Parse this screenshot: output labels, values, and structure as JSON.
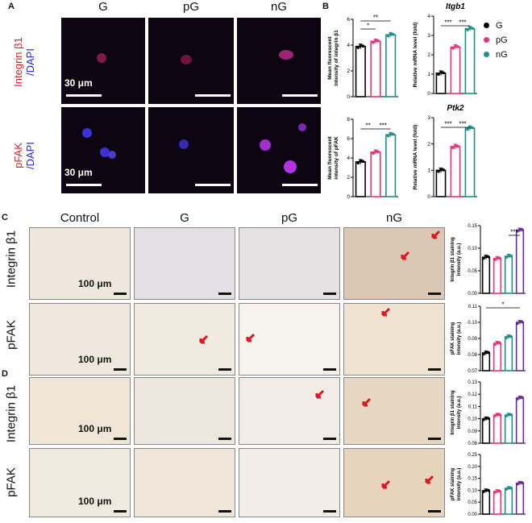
{
  "panels": {
    "a": "A",
    "b": "B",
    "c": "C",
    "d": "D"
  },
  "fluor": {
    "columns": [
      "G",
      "pG",
      "nG"
    ],
    "rows": [
      {
        "label_red": "Integrin β1",
        "label_blue": "/DAPI"
      },
      {
        "label_red": "pFAK",
        "label_blue": "/DAPI"
      }
    ],
    "scale": "30 μm"
  },
  "ihc": {
    "columns": [
      "Control",
      "G",
      "pG",
      "nG"
    ],
    "rows_c": [
      "Integrin β1",
      "pFAK"
    ],
    "rows_d": [
      "Integrin β1",
      "pFAK"
    ],
    "scale": "100 μm"
  },
  "legend": {
    "items": [
      {
        "name": "G",
        "color": "#000000"
      },
      {
        "name": "pG",
        "color": "#e8337a"
      },
      {
        "name": "nG",
        "color": "#1f8f8a"
      }
    ]
  },
  "colors": {
    "G": "#000000",
    "pG": "#e8337a",
    "nG": "#1f8f8a",
    "nG_purple": "#6a2c91"
  },
  "chart_data": [
    {
      "type": "bar",
      "id": "b_integrin",
      "categories": [
        "G",
        "pG",
        "nG"
      ],
      "values": [
        3.9,
        4.3,
        4.8
      ],
      "ylabel": "Mean fluorescent intensity of integrin β1",
      "ylim": [
        0,
        6
      ],
      "yticks": [
        0,
        2,
        4,
        6
      ],
      "sig": [
        {
          "from": 0,
          "to": 1,
          "label": "*"
        },
        {
          "from": 0,
          "to": 2,
          "label": "**"
        }
      ]
    },
    {
      "type": "bar",
      "id": "b_itgb1",
      "title": "Itgb1",
      "categories": [
        "G",
        "pG",
        "nG"
      ],
      "values": [
        1.05,
        2.4,
        3.35
      ],
      "ylabel": "Relative mRNA level (fold)",
      "ylim": [
        0,
        4
      ],
      "yticks": [
        0,
        1,
        2,
        3,
        4
      ],
      "sig": [
        {
          "from": 0,
          "to": 1,
          "label": "***"
        },
        {
          "from": 1,
          "to": 2,
          "label": "***"
        }
      ]
    },
    {
      "type": "bar",
      "id": "b_pfak",
      "categories": [
        "G",
        "pG",
        "nG"
      ],
      "values": [
        3.6,
        4.6,
        6.4
      ],
      "ylabel": "Mean fluorescent intensity of pFAK",
      "ylim": [
        0,
        8
      ],
      "yticks": [
        0,
        2,
        4,
        6,
        8
      ],
      "sig": [
        {
          "from": 0,
          "to": 1,
          "label": "**"
        },
        {
          "from": 1,
          "to": 2,
          "label": "***"
        }
      ]
    },
    {
      "type": "bar",
      "id": "b_ptk2",
      "title": "Ptk2",
      "categories": [
        "G",
        "pG",
        "nG"
      ],
      "values": [
        1.0,
        1.9,
        2.6
      ],
      "ylabel": "Relative mRNA level (fold)",
      "ylim": [
        0,
        3
      ],
      "yticks": [
        0,
        1,
        2,
        3
      ],
      "sig": [
        {
          "from": 0,
          "to": 1,
          "label": "***"
        },
        {
          "from": 1,
          "to": 2,
          "label": "***"
        }
      ]
    },
    {
      "type": "bar",
      "id": "c_integrin",
      "categories": [
        "Control",
        "G",
        "pG",
        "nG"
      ],
      "values": [
        0.08,
        0.077,
        0.082,
        0.14
      ],
      "ylabel": "Integrin β1 staining intensity (a.u.)",
      "ylim": [
        0,
        0.15
      ],
      "yticks": [
        0.0,
        0.05,
        0.1,
        0.15
      ],
      "sig": [
        {
          "from": 2,
          "to": 3,
          "label": "***"
        }
      ]
    },
    {
      "type": "bar",
      "id": "c_pfak",
      "categories": [
        "Control",
        "G",
        "pG",
        "nG"
      ],
      "values": [
        0.081,
        0.087,
        0.091,
        0.1
      ],
      "ylabel": "pFAK staining intensity (a.u.)",
      "ylim": [
        0.07,
        0.11
      ],
      "yticks": [
        0.07,
        0.08,
        0.09,
        0.1,
        0.11
      ],
      "sig": [
        {
          "from": 0,
          "to": 3,
          "label": "*"
        }
      ]
    },
    {
      "type": "bar",
      "id": "d_integrin",
      "categories": [
        "Control",
        "G",
        "pG",
        "nG"
      ],
      "values": [
        0.1,
        0.103,
        0.103,
        0.117
      ],
      "ylabel": "Integrin β1 staining intensity (a.u.)",
      "ylim": [
        0.08,
        0.13
      ],
      "yticks": [
        0.08,
        0.09,
        0.1,
        0.11,
        0.12,
        0.13
      ],
      "sig": []
    },
    {
      "type": "bar",
      "id": "d_pfak",
      "categories": [
        "Control",
        "G",
        "pG",
        "nG"
      ],
      "values": [
        0.098,
        0.095,
        0.108,
        0.13
      ],
      "ylabel": "pFAK staining intensity (a.u.)",
      "ylim": [
        0,
        0.25
      ],
      "yticks": [
        0.0,
        0.05,
        0.1,
        0.15,
        0.2,
        0.25
      ],
      "sig": []
    }
  ]
}
